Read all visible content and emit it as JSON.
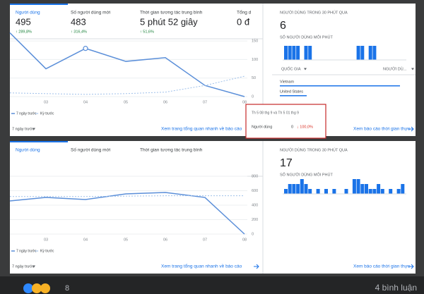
{
  "panels": [
    {
      "metrics": [
        {
          "label": "Người dùng",
          "value": "495",
          "change": "↑ 289,8%"
        },
        {
          "label": "Số người dùng mới",
          "value": "483",
          "change": "↑ 316,4%"
        },
        {
          "label": "Thời gian tương tác trung bình",
          "value": "5 phút 52 giây",
          "change": "↑ 51,6%"
        },
        {
          "label": "Tổng d",
          "value": "0 đ"
        }
      ],
      "chart": {
        "x_labels": [
          null,
          "03",
          "04",
          "05",
          "06",
          "07",
          "08"
        ],
        "ylim": [
          0,
          175
        ],
        "yticks": [
          0,
          50,
          100,
          150
        ],
        "series": [
          {
            "name": "7 ngày trước",
            "color": "#5b8fd9",
            "values": [
              172,
              75,
              130,
              95,
              105,
              30,
              0
            ]
          },
          {
            "name": "Kỳ trước",
            "color": "#9fc0ea",
            "values": [
              10,
              8,
              6,
              8,
              12,
              30,
              55
            ]
          }
        ]
      },
      "date_range": "7 ngày trước",
      "link": "Xem trang tổng quan nhanh về báo cáo",
      "tooltip": {
        "dates": "Th 5 08 thg 9 và Th 5 01 thg 9",
        "metric": "Người dùng",
        "value": "0",
        "change": "↓ 100,0%"
      },
      "realtime": {
        "title": "NGƯỜI DÙNG TRONG 30 PHÚT QUA",
        "count": "6",
        "subtitle": "SỐ NGƯỜI DÙNG MỖI PHÚT",
        "bars": [
          1,
          1,
          1,
          1,
          0,
          1,
          1,
          0,
          0,
          0,
          0,
          0,
          0,
          0,
          0,
          0,
          0,
          0,
          1,
          1,
          0,
          1,
          1,
          0,
          0,
          0,
          0,
          0,
          0,
          0
        ],
        "table_headers": [
          "QUỐC GIA",
          "NGƯỜI DÙ..."
        ],
        "rows": [
          "Vietnam",
          "United States"
        ],
        "link": "Xem báo cáo thời gian thực"
      }
    },
    {
      "metrics": [
        {
          "label": "Người dùng"
        },
        {
          "label": "Số người dùng mới"
        },
        {
          "label": "Thời gian tương tác trung bình"
        }
      ],
      "chart": {
        "x_labels": [
          null,
          "03",
          "04",
          "05",
          "06",
          "07",
          "08"
        ],
        "ylim": [
          0,
          800
        ],
        "yticks": [
          0,
          200,
          400,
          600,
          800
        ],
        "series": [
          {
            "name": "7 ngày trước",
            "color": "#5b8fd9",
            "values": [
              458,
              507,
              478,
              556,
              575,
              507,
              0
            ]
          },
          {
            "name": "Kỳ trước",
            "color": "#9fc0ea",
            "values": [
              520,
              520,
              520,
              525,
              530,
              530,
              530
            ]
          }
        ]
      },
      "date_range": "7 ngày trước",
      "link": "Xem trang tổng quan nhanh về báo cáo",
      "realtime": {
        "title": "NGƯỜI DÙNG TRONG 30 PHÚT QUA",
        "count": "17",
        "subtitle": "SỐ NGƯỜI DÙNG MỖI PHÚT",
        "bars": [
          1,
          2,
          2,
          2,
          3,
          2,
          1,
          0,
          1,
          0,
          1,
          0,
          1,
          0,
          0,
          1,
          0,
          3,
          3,
          2,
          2,
          1,
          1,
          2,
          1,
          0,
          1,
          0,
          1,
          2
        ],
        "link": "Xem báo cáo thời gian thực"
      }
    }
  ],
  "post": {
    "reaction_count": "8",
    "comments": "4 bình luận"
  }
}
